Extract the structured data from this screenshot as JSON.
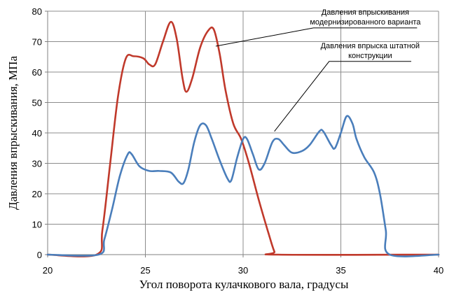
{
  "chart_data": {
    "type": "line",
    "title": "",
    "xlabel": "Угол поворота кулачкового вала, градусы",
    "ylabel": "Давления впрыскивания, МПа",
    "xlim": [
      20,
      40
    ],
    "ylim": [
      0,
      80
    ],
    "x_ticks": [
      20,
      25,
      30,
      35,
      40
    ],
    "y_ticks": [
      0,
      10,
      20,
      30,
      40,
      50,
      60,
      70,
      80
    ],
    "grid": true,
    "legend": "none",
    "series": [
      {
        "color": "#c0392b",
        "points": [
          [
            20,
            0
          ],
          [
            22.5,
            0
          ],
          [
            22.8,
            8
          ],
          [
            23.2,
            30
          ],
          [
            23.6,
            52
          ],
          [
            24.0,
            64.5
          ],
          [
            24.4,
            65.2
          ],
          [
            24.9,
            64.5
          ],
          [
            25.2,
            62.5
          ],
          [
            25.5,
            62.5
          ],
          [
            25.9,
            70
          ],
          [
            26.3,
            76.5
          ],
          [
            26.6,
            71
          ],
          [
            26.9,
            58
          ],
          [
            27.1,
            53.5
          ],
          [
            27.4,
            58
          ],
          [
            27.8,
            68
          ],
          [
            28.2,
            73.5
          ],
          [
            28.5,
            74
          ],
          [
            28.8,
            66
          ],
          [
            29.1,
            54
          ],
          [
            29.5,
            43
          ],
          [
            29.9,
            38
          ],
          [
            30.3,
            30
          ],
          [
            30.8,
            18
          ],
          [
            31.3,
            7
          ],
          [
            31.6,
            1
          ],
          [
            31.8,
            0
          ],
          [
            40,
            0
          ]
        ]
      },
      {
        "color": "#4a7ebb",
        "points": [
          [
            20,
            0
          ],
          [
            22.6,
            0
          ],
          [
            22.9,
            5
          ],
          [
            23.3,
            15
          ],
          [
            23.7,
            26
          ],
          [
            24.1,
            33
          ],
          [
            24.3,
            33
          ],
          [
            24.7,
            29
          ],
          [
            25.2,
            27.5
          ],
          [
            25.7,
            27.5
          ],
          [
            26.3,
            27
          ],
          [
            26.7,
            24
          ],
          [
            26.95,
            23.5
          ],
          [
            27.2,
            28
          ],
          [
            27.5,
            37
          ],
          [
            27.8,
            42.5
          ],
          [
            28.1,
            42.5
          ],
          [
            28.4,
            38
          ],
          [
            28.8,
            31
          ],
          [
            29.2,
            25
          ],
          [
            29.4,
            24.5
          ],
          [
            29.7,
            32
          ],
          [
            30.0,
            38
          ],
          [
            30.2,
            38
          ],
          [
            30.5,
            33
          ],
          [
            30.8,
            28
          ],
          [
            31.1,
            30
          ],
          [
            31.5,
            37
          ],
          [
            31.8,
            38
          ],
          [
            32.1,
            36
          ],
          [
            32.5,
            33.5
          ],
          [
            33.0,
            34
          ],
          [
            33.4,
            36
          ],
          [
            33.9,
            40.5
          ],
          [
            34.1,
            40.5
          ],
          [
            34.5,
            36
          ],
          [
            34.7,
            35
          ],
          [
            35.0,
            40
          ],
          [
            35.3,
            45.5
          ],
          [
            35.6,
            43
          ],
          [
            35.8,
            38
          ],
          [
            36.2,
            32
          ],
          [
            36.7,
            27
          ],
          [
            37.0,
            20
          ],
          [
            37.3,
            8
          ],
          [
            37.5,
            0
          ],
          [
            40,
            0
          ]
        ]
      }
    ],
    "annotations": [
      {
        "lines": [
          "Давления впрыскивания",
          "модернизированного варианта"
        ],
        "target": [
          28.6,
          68.5
        ],
        "elbow": [
          33.6,
          74.5
        ],
        "line_end": [
          38.9,
          74.5
        ]
      },
      {
        "lines": [
          "Давления впрыска штатной",
          "конструкции"
        ],
        "target": [
          31.6,
          40.5
        ],
        "elbow": [
          34.4,
          63.5
        ],
        "line_end": [
          38.6,
          63.5
        ]
      }
    ]
  }
}
